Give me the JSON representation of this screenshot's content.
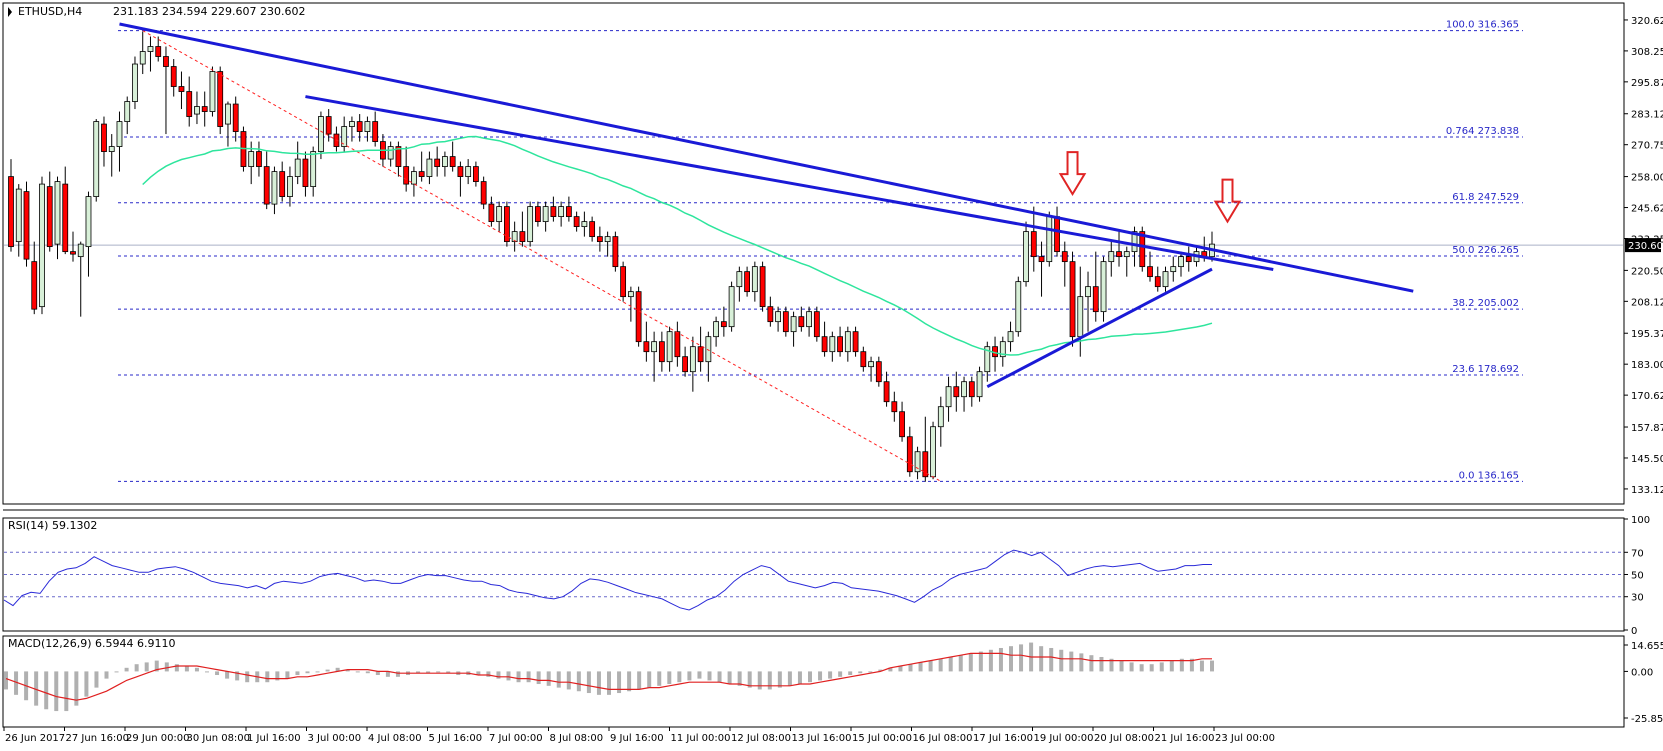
{
  "header": {
    "symbol": "ETHUSD,H4",
    "ohlc": "231.183 234.594 229.607 230.602"
  },
  "rsi": {
    "label": "RSI(14) 59.1302",
    "range": [
      0,
      100
    ],
    "ticks": [
      "100",
      "70",
      "50",
      "30",
      "0"
    ],
    "levels": [
      70,
      50,
      30
    ],
    "color": "#2a2ad8",
    "values": [
      27,
      22,
      31,
      34,
      33,
      44,
      52,
      55,
      56,
      60,
      66,
      62,
      58,
      56,
      54,
      52,
      52,
      55,
      56,
      57,
      55,
      52,
      48,
      44,
      42,
      41,
      40,
      38,
      40,
      37,
      42,
      44,
      43,
      42,
      44,
      48,
      50,
      51,
      49,
      47,
      44,
      45,
      44,
      42,
      42,
      45,
      48,
      50,
      49,
      49,
      47,
      45,
      44,
      44,
      41,
      40,
      36,
      34,
      33,
      31,
      29,
      28,
      30,
      35,
      42,
      46,
      45,
      43,
      40,
      37,
      34,
      32,
      30,
      28,
      24,
      20,
      18,
      22,
      27,
      30,
      36,
      44,
      50,
      54,
      58,
      56,
      50,
      44,
      42,
      40,
      38,
      40,
      43,
      42,
      38,
      37,
      36,
      35,
      33,
      31,
      28,
      25,
      30,
      36,
      40,
      46,
      50,
      52,
      54,
      56,
      62,
      68,
      72,
      70,
      67,
      70,
      64,
      58,
      49,
      52,
      55,
      57,
      58,
      57,
      58,
      59,
      60,
      56,
      53,
      54,
      55,
      58,
      58,
      59,
      59
    ]
  },
  "macd": {
    "label": "MACD(12,26,9) 6.5944 6.9110",
    "ticks": [
      "14.6551",
      "0.00",
      "-25.8526"
    ],
    "range": [
      -25.8526,
      14.6551
    ],
    "hist_color": "#b0b0b0",
    "signal_color": "#e02020",
    "histogram": [
      -10,
      -13,
      -16,
      -19,
      -21,
      -22,
      -22,
      -19,
      -14,
      -9,
      -4,
      0,
      2,
      4,
      5,
      6,
      5,
      4,
      3,
      2,
      0,
      -2,
      -4,
      -5,
      -6,
      -6,
      -6,
      -5,
      -4,
      -2,
      -1,
      0,
      1,
      2,
      1,
      0,
      -1,
      -2,
      -3,
      -3,
      -2,
      -1,
      -1,
      0,
      -1,
      -2,
      -2,
      -2,
      -3,
      -4,
      -5,
      -6,
      -6,
      -7,
      -8,
      -9,
      -10,
      -11,
      -12,
      -13,
      -13,
      -12,
      -11,
      -10,
      -9,
      -8,
      -7,
      -6,
      -5,
      -4,
      -5,
      -6,
      -7,
      -8,
      -9,
      -10,
      -10,
      -9,
      -8,
      -7,
      -6,
      -5,
      -4,
      -3,
      -2,
      -1,
      0,
      1,
      2,
      3,
      4,
      5,
      6,
      7,
      8,
      9,
      10,
      11,
      12,
      13,
      14,
      15,
      16,
      14,
      13,
      12,
      11,
      10,
      9,
      8,
      7,
      6,
      5,
      4,
      4,
      5,
      6,
      7,
      7,
      6,
      6
    ],
    "signal": [
      -4,
      -6,
      -8,
      -10,
      -12,
      -14,
      -15,
      -16,
      -15,
      -13,
      -11,
      -8,
      -5,
      -3,
      -1,
      1,
      2,
      3,
      3,
      3,
      2,
      1,
      0,
      -1,
      -2,
      -3,
      -4,
      -4,
      -4,
      -3,
      -3,
      -2,
      -1,
      0,
      1,
      1,
      1,
      0,
      0,
      -1,
      -1,
      -1,
      -1,
      -1,
      -1,
      -1,
      -1,
      -2,
      -2,
      -3,
      -3,
      -4,
      -4,
      -5,
      -5,
      -6,
      -6,
      -7,
      -8,
      -9,
      -10,
      -10,
      -10,
      -10,
      -9,
      -9,
      -8,
      -7,
      -6,
      -6,
      -6,
      -6,
      -7,
      -7,
      -8,
      -8,
      -8,
      -8,
      -8,
      -7,
      -7,
      -6,
      -5,
      -4,
      -3,
      -2,
      -1,
      0,
      2,
      3,
      4,
      5,
      6,
      7,
      8,
      9,
      10,
      10,
      10,
      10,
      9,
      9,
      8,
      8,
      8,
      7,
      7,
      7,
      6,
      6,
      6,
      6,
      6,
      6,
      6,
      6,
      6,
      6,
      6,
      7,
      7
    ]
  },
  "chart_data": {
    "type": "candlestick",
    "title": "ETHUSD,H4 231.183 234.594 229.607 230.602",
    "ylim": [
      127.5,
      327
    ],
    "y_ticks": [
      "320.625",
      "308.250",
      "295.875",
      "283.125",
      "270.750",
      "258.000",
      "245.625",
      "233.250",
      "220.500",
      "208.125",
      "195.375",
      "183.000",
      "170.625",
      "157.875",
      "145.500",
      "133.125"
    ],
    "current_price": "230.602",
    "x_labels": [
      "26 Jun 2017",
      "27 Jun 16:00",
      "29 Jun 00:00",
      "30 Jun 08:00",
      "1 Jul 16:00",
      "3 Jul 00:00",
      "4 Jul 08:00",
      "5 Jul 16:00",
      "7 Jul 00:00",
      "8 Jul 08:00",
      "9 Jul 16:00",
      "11 Jul 00:00",
      "12 Jul 08:00",
      "13 Jul 16:00",
      "15 Jul 00:00",
      "16 Jul 08:00",
      "17 Jul 16:00",
      "19 Jul 00:00",
      "20 Jul 08:00",
      "21 Jul 16:00",
      "23 Jul 00:00"
    ],
    "fibonacci": [
      {
        "label": "100.0",
        "price": 316.365
      },
      {
        "label": "0.764",
        "price": 273.838
      },
      {
        "label": "61.8",
        "price": 247.529
      },
      {
        "label": "50.0",
        "price": 226.265
      },
      {
        "label": "38.2",
        "price": 205.002
      },
      {
        "label": "23.6",
        "price": 178.692
      },
      {
        "label": "0.0",
        "price": 136.165
      }
    ],
    "fib_color": "#2828c8",
    "candle_up_color": "#d8f0d8",
    "candle_down_color": "#ff0000",
    "ma_color": "#2ee59d",
    "trend_line_color": "#1a1ad6",
    "arrow_color": "#e02424",
    "candles": [
      {
        "o": 258,
        "h": 265,
        "l": 228,
        "c": 230
      },
      {
        "o": 232,
        "h": 255,
        "l": 226,
        "c": 253
      },
      {
        "o": 252,
        "h": 256,
        "l": 222,
        "c": 225
      },
      {
        "o": 224,
        "h": 232,
        "l": 203,
        "c": 205
      },
      {
        "o": 206,
        "h": 258,
        "l": 203,
        "c": 255
      },
      {
        "o": 254,
        "h": 260,
        "l": 228,
        "c": 230
      },
      {
        "o": 231,
        "h": 258,
        "l": 225,
        "c": 256
      },
      {
        "o": 255,
        "h": 262,
        "l": 227,
        "c": 228
      },
      {
        "o": 228,
        "h": 236,
        "l": 224,
        "c": 227
      },
      {
        "o": 226,
        "h": 232,
        "l": 202,
        "c": 231
      },
      {
        "o": 230,
        "h": 252,
        "l": 218,
        "c": 250
      },
      {
        "o": 250,
        "h": 281,
        "l": 248,
        "c": 280
      },
      {
        "o": 279,
        "h": 282,
        "l": 262,
        "c": 268
      },
      {
        "o": 268,
        "h": 275,
        "l": 258,
        "c": 270
      },
      {
        "o": 270,
        "h": 284,
        "l": 260,
        "c": 280
      },
      {
        "o": 280,
        "h": 290,
        "l": 275,
        "c": 288
      },
      {
        "o": 288,
        "h": 306,
        "l": 285,
        "c": 303
      },
      {
        "o": 303,
        "h": 316,
        "l": 299,
        "c": 308
      },
      {
        "o": 308,
        "h": 314,
        "l": 300,
        "c": 310
      },
      {
        "o": 310,
        "h": 314,
        "l": 304,
        "c": 306
      },
      {
        "o": 306,
        "h": 310,
        "l": 275,
        "c": 302
      },
      {
        "o": 302,
        "h": 305,
        "l": 290,
        "c": 294
      },
      {
        "o": 294,
        "h": 300,
        "l": 285,
        "c": 292
      },
      {
        "o": 292,
        "h": 298,
        "l": 278,
        "c": 282
      },
      {
        "o": 283,
        "h": 292,
        "l": 279,
        "c": 286
      },
      {
        "o": 286,
        "h": 292,
        "l": 278,
        "c": 284
      },
      {
        "o": 284,
        "h": 302,
        "l": 282,
        "c": 300
      },
      {
        "o": 300,
        "h": 302,
        "l": 275,
        "c": 278
      },
      {
        "o": 279,
        "h": 288,
        "l": 270,
        "c": 287
      },
      {
        "o": 287,
        "h": 290,
        "l": 272,
        "c": 276
      },
      {
        "o": 276,
        "h": 278,
        "l": 260,
        "c": 262
      },
      {
        "o": 262,
        "h": 272,
        "l": 255,
        "c": 268
      },
      {
        "o": 268,
        "h": 272,
        "l": 258,
        "c": 262
      },
      {
        "o": 262,
        "h": 268,
        "l": 245,
        "c": 247
      },
      {
        "o": 247,
        "h": 262,
        "l": 243,
        "c": 260
      },
      {
        "o": 260,
        "h": 264,
        "l": 248,
        "c": 250
      },
      {
        "o": 250,
        "h": 262,
        "l": 246,
        "c": 258
      },
      {
        "o": 258,
        "h": 272,
        "l": 255,
        "c": 265
      },
      {
        "o": 265,
        "h": 268,
        "l": 250,
        "c": 254
      },
      {
        "o": 254,
        "h": 270,
        "l": 250,
        "c": 268
      },
      {
        "o": 268,
        "h": 284,
        "l": 265,
        "c": 282
      },
      {
        "o": 282,
        "h": 285,
        "l": 272,
        "c": 275
      },
      {
        "o": 275,
        "h": 278,
        "l": 268,
        "c": 270
      },
      {
        "o": 270,
        "h": 282,
        "l": 268,
        "c": 278
      },
      {
        "o": 278,
        "h": 282,
        "l": 272,
        "c": 280
      },
      {
        "o": 280,
        "h": 283,
        "l": 272,
        "c": 276
      },
      {
        "o": 276,
        "h": 282,
        "l": 272,
        "c": 280
      },
      {
        "o": 280,
        "h": 284,
        "l": 270,
        "c": 272
      },
      {
        "o": 272,
        "h": 275,
        "l": 262,
        "c": 265
      },
      {
        "o": 265,
        "h": 272,
        "l": 262,
        "c": 270
      },
      {
        "o": 270,
        "h": 272,
        "l": 258,
        "c": 262
      },
      {
        "o": 262,
        "h": 270,
        "l": 252,
        "c": 255
      },
      {
        "o": 255,
        "h": 262,
        "l": 250,
        "c": 260
      },
      {
        "o": 260,
        "h": 268,
        "l": 256,
        "c": 258
      },
      {
        "o": 258,
        "h": 268,
        "l": 255,
        "c": 265
      },
      {
        "o": 265,
        "h": 270,
        "l": 258,
        "c": 262
      },
      {
        "o": 262,
        "h": 268,
        "l": 258,
        "c": 266
      },
      {
        "o": 266,
        "h": 272,
        "l": 260,
        "c": 262
      },
      {
        "o": 262,
        "h": 264,
        "l": 250,
        "c": 258
      },
      {
        "o": 258,
        "h": 265,
        "l": 255,
        "c": 262
      },
      {
        "o": 262,
        "h": 264,
        "l": 254,
        "c": 256
      },
      {
        "o": 256,
        "h": 258,
        "l": 245,
        "c": 247
      },
      {
        "o": 247,
        "h": 250,
        "l": 238,
        "c": 240
      },
      {
        "o": 240,
        "h": 248,
        "l": 236,
        "c": 246
      },
      {
        "o": 246,
        "h": 248,
        "l": 230,
        "c": 232
      },
      {
        "o": 232,
        "h": 240,
        "l": 228,
        "c": 236
      },
      {
        "o": 236,
        "h": 244,
        "l": 230,
        "c": 232
      },
      {
        "o": 232,
        "h": 248,
        "l": 230,
        "c": 246
      },
      {
        "o": 246,
        "h": 248,
        "l": 238,
        "c": 240
      },
      {
        "o": 240,
        "h": 248,
        "l": 236,
        "c": 246
      },
      {
        "o": 246,
        "h": 250,
        "l": 240,
        "c": 242
      },
      {
        "o": 242,
        "h": 248,
        "l": 238,
        "c": 246
      },
      {
        "o": 246,
        "h": 250,
        "l": 240,
        "c": 242
      },
      {
        "o": 242,
        "h": 244,
        "l": 236,
        "c": 238
      },
      {
        "o": 238,
        "h": 244,
        "l": 234,
        "c": 240
      },
      {
        "o": 240,
        "h": 242,
        "l": 232,
        "c": 234
      },
      {
        "o": 234,
        "h": 238,
        "l": 228,
        "c": 232
      },
      {
        "o": 232,
        "h": 236,
        "l": 226,
        "c": 234
      },
      {
        "o": 234,
        "h": 236,
        "l": 220,
        "c": 222
      },
      {
        "o": 222,
        "h": 224,
        "l": 208,
        "c": 210
      },
      {
        "o": 210,
        "h": 214,
        "l": 200,
        "c": 212
      },
      {
        "o": 212,
        "h": 214,
        "l": 190,
        "c": 192
      },
      {
        "o": 192,
        "h": 200,
        "l": 184,
        "c": 188
      },
      {
        "o": 188,
        "h": 196,
        "l": 176,
        "c": 192
      },
      {
        "o": 192,
        "h": 196,
        "l": 180,
        "c": 184
      },
      {
        "o": 184,
        "h": 198,
        "l": 180,
        "c": 196
      },
      {
        "o": 196,
        "h": 200,
        "l": 182,
        "c": 186
      },
      {
        "o": 186,
        "h": 190,
        "l": 178,
        "c": 180
      },
      {
        "o": 180,
        "h": 194,
        "l": 172,
        "c": 190
      },
      {
        "o": 190,
        "h": 198,
        "l": 180,
        "c": 184
      },
      {
        "o": 184,
        "h": 196,
        "l": 176,
        "c": 194
      },
      {
        "o": 194,
        "h": 202,
        "l": 190,
        "c": 200
      },
      {
        "o": 200,
        "h": 206,
        "l": 194,
        "c": 198
      },
      {
        "o": 198,
        "h": 216,
        "l": 196,
        "c": 214
      },
      {
        "o": 214,
        "h": 222,
        "l": 208,
        "c": 220
      },
      {
        "o": 220,
        "h": 222,
        "l": 210,
        "c": 212
      },
      {
        "o": 212,
        "h": 224,
        "l": 208,
        "c": 222
      },
      {
        "o": 222,
        "h": 224,
        "l": 204,
        "c": 206
      },
      {
        "o": 206,
        "h": 210,
        "l": 198,
        "c": 200
      },
      {
        "o": 200,
        "h": 206,
        "l": 196,
        "c": 204
      },
      {
        "o": 204,
        "h": 206,
        "l": 194,
        "c": 196
      },
      {
        "o": 196,
        "h": 204,
        "l": 190,
        "c": 202
      },
      {
        "o": 202,
        "h": 206,
        "l": 196,
        "c": 198
      },
      {
        "o": 198,
        "h": 206,
        "l": 194,
        "c": 204
      },
      {
        "o": 204,
        "h": 206,
        "l": 192,
        "c": 194
      },
      {
        "o": 194,
        "h": 200,
        "l": 186,
        "c": 188
      },
      {
        "o": 188,
        "h": 196,
        "l": 184,
        "c": 194
      },
      {
        "o": 194,
        "h": 198,
        "l": 186,
        "c": 188
      },
      {
        "o": 188,
        "h": 198,
        "l": 184,
        "c": 196
      },
      {
        "o": 196,
        "h": 198,
        "l": 186,
        "c": 188
      },
      {
        "o": 188,
        "h": 190,
        "l": 180,
        "c": 182
      },
      {
        "o": 182,
        "h": 186,
        "l": 176,
        "c": 184
      },
      {
        "o": 184,
        "h": 186,
        "l": 174,
        "c": 176
      },
      {
        "o": 176,
        "h": 180,
        "l": 166,
        "c": 168
      },
      {
        "o": 168,
        "h": 172,
        "l": 160,
        "c": 164
      },
      {
        "o": 164,
        "h": 168,
        "l": 152,
        "c": 154
      },
      {
        "o": 154,
        "h": 158,
        "l": 138,
        "c": 140
      },
      {
        "o": 140,
        "h": 150,
        "l": 137,
        "c": 148
      },
      {
        "o": 148,
        "h": 162,
        "l": 136,
        "c": 138
      },
      {
        "o": 138,
        "h": 160,
        "l": 137,
        "c": 158
      },
      {
        "o": 158,
        "h": 170,
        "l": 150,
        "c": 166
      },
      {
        "o": 166,
        "h": 178,
        "l": 160,
        "c": 174
      },
      {
        "o": 174,
        "h": 180,
        "l": 164,
        "c": 170
      },
      {
        "o": 170,
        "h": 178,
        "l": 164,
        "c": 176
      },
      {
        "o": 176,
        "h": 178,
        "l": 166,
        "c": 170
      },
      {
        "o": 170,
        "h": 182,
        "l": 168,
        "c": 180
      },
      {
        "o": 180,
        "h": 192,
        "l": 176,
        "c": 190
      },
      {
        "o": 190,
        "h": 194,
        "l": 180,
        "c": 186
      },
      {
        "o": 186,
        "h": 194,
        "l": 182,
        "c": 192
      },
      {
        "o": 192,
        "h": 200,
        "l": 188,
        "c": 196
      },
      {
        "o": 196,
        "h": 218,
        "l": 194,
        "c": 216
      },
      {
        "o": 216,
        "h": 240,
        "l": 214,
        "c": 236
      },
      {
        "o": 236,
        "h": 246,
        "l": 220,
        "c": 226
      },
      {
        "o": 226,
        "h": 232,
        "l": 210,
        "c": 224
      },
      {
        "o": 224,
        "h": 244,
        "l": 222,
        "c": 242
      },
      {
        "o": 242,
        "h": 246,
        "l": 226,
        "c": 228
      },
      {
        "o": 228,
        "h": 232,
        "l": 214,
        "c": 224
      },
      {
        "o": 224,
        "h": 228,
        "l": 190,
        "c": 194
      },
      {
        "o": 194,
        "h": 222,
        "l": 186,
        "c": 210
      },
      {
        "o": 210,
        "h": 220,
        "l": 196,
        "c": 214
      },
      {
        "o": 214,
        "h": 228,
        "l": 200,
        "c": 204
      },
      {
        "o": 204,
        "h": 226,
        "l": 200,
        "c": 224
      },
      {
        "o": 224,
        "h": 232,
        "l": 218,
        "c": 228
      },
      {
        "o": 228,
        "h": 236,
        "l": 222,
        "c": 226
      },
      {
        "o": 226,
        "h": 230,
        "l": 218,
        "c": 228
      },
      {
        "o": 228,
        "h": 238,
        "l": 222,
        "c": 236
      },
      {
        "o": 236,
        "h": 238,
        "l": 220,
        "c": 222
      },
      {
        "o": 222,
        "h": 228,
        "l": 216,
        "c": 218
      },
      {
        "o": 218,
        "h": 222,
        "l": 212,
        "c": 214
      },
      {
        "o": 214,
        "h": 222,
        "l": 212,
        "c": 220
      },
      {
        "o": 220,
        "h": 226,
        "l": 216,
        "c": 222
      },
      {
        "o": 222,
        "h": 228,
        "l": 218,
        "c": 226
      },
      {
        "o": 226,
        "h": 230,
        "l": 220,
        "c": 224
      },
      {
        "o": 224,
        "h": 230,
        "l": 222,
        "c": 228
      },
      {
        "o": 228,
        "h": 234,
        "l": 224,
        "c": 226
      },
      {
        "o": 226,
        "h": 236,
        "l": 224,
        "c": 231
      }
    ]
  }
}
